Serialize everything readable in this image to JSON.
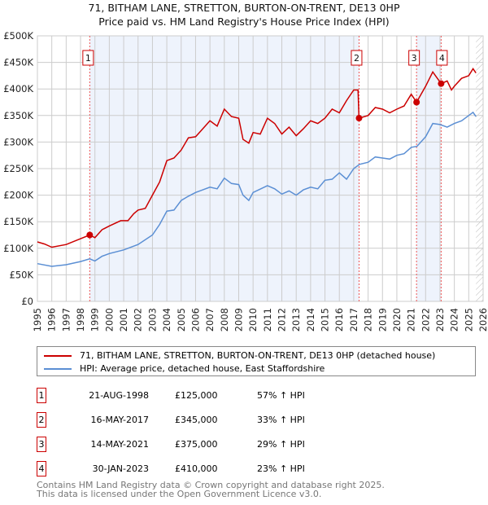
{
  "chart_data": {
    "type": "line",
    "title": "71, BITHAM LANE, STRETTON, BURTON-ON-TRENT, DE13 0HP",
    "subtitle": "Price paid vs. HM Land Registry's House Price Index (HPI)",
    "xlim": [
      1995,
      2026
    ],
    "ylim": [
      0,
      500000
    ],
    "x_ticks": [
      "1995",
      "1996",
      "1997",
      "1998",
      "1999",
      "2000",
      "2001",
      "2002",
      "2003",
      "2004",
      "2005",
      "2006",
      "2007",
      "2008",
      "2009",
      "2010",
      "2011",
      "2012",
      "2013",
      "2014",
      "2015",
      "2016",
      "2017",
      "2018",
      "2019",
      "2020",
      "2021",
      "2022",
      "2023",
      "2024",
      "2025",
      "2026"
    ],
    "y_ticks": [
      {
        "v": 0,
        "label": "£0"
      },
      {
        "v": 50000,
        "label": "£50K"
      },
      {
        "v": 100000,
        "label": "£100K"
      },
      {
        "v": 150000,
        "label": "£150K"
      },
      {
        "v": 200000,
        "label": "£200K"
      },
      {
        "v": 250000,
        "label": "£250K"
      },
      {
        "v": 300000,
        "label": "£300K"
      },
      {
        "v": 350000,
        "label": "£350K"
      },
      {
        "v": 400000,
        "label": "£400K"
      },
      {
        "v": 450000,
        "label": "£450K"
      },
      {
        "v": 500000,
        "label": "£500K"
      }
    ],
    "grid": true,
    "shaded_ranges": [
      [
        1998.64,
        2017.37
      ],
      [
        2021.37,
        2023.08
      ]
    ],
    "hatched_from": 2025.5,
    "series": [
      {
        "name": "71, BITHAM LANE, STRETTON, BURTON-ON-TRENT, DE13 0HP (detached house)",
        "color": "#cc0000",
        "x": [
          1995,
          1995.5,
          1996,
          1997,
          1998,
          1998.64,
          1999,
          1999.5,
          2000,
          2000.8,
          2001.3,
          2001.7,
          2002,
          2002.5,
          2003,
          2003.5,
          2004,
          2004.5,
          2005,
          2005.5,
          2006,
          2006.5,
          2007,
          2007.5,
          2008,
          2008.5,
          2009,
          2009.3,
          2009.7,
          2010,
          2010.5,
          2011,
          2011.5,
          2012,
          2012.5,
          2013,
          2013.5,
          2014,
          2014.5,
          2015,
          2015.5,
          2016,
          2016.5,
          2017,
          2017.3,
          2017.37,
          2018,
          2018.5,
          2019,
          2019.5,
          2020,
          2020.5,
          2021,
          2021.37,
          2022,
          2022.5,
          2023.08,
          2023.5,
          2023.8,
          2024,
          2024.5,
          2025,
          2025.3,
          2025.5
        ],
        "y": [
          112000,
          108000,
          102000,
          107000,
          118000,
          125000,
          120000,
          135000,
          142000,
          152000,
          152000,
          165000,
          172000,
          175000,
          200000,
          225000,
          265000,
          270000,
          285000,
          308000,
          310000,
          325000,
          340000,
          330000,
          362000,
          348000,
          345000,
          305000,
          298000,
          318000,
          315000,
          345000,
          335000,
          315000,
          328000,
          312000,
          325000,
          340000,
          335000,
          345000,
          362000,
          355000,
          378000,
          398000,
          398000,
          345000,
          350000,
          365000,
          362000,
          355000,
          362000,
          368000,
          390000,
          375000,
          405000,
          432000,
          410000,
          415000,
          398000,
          405000,
          420000,
          425000,
          438000,
          430000
        ]
      },
      {
        "name": "HPI: Average price, detached house, East Staffordshire",
        "color": "#5b8fd4",
        "x": [
          1995,
          1996,
          1997,
          1998,
          1998.64,
          1999,
          1999.5,
          2000,
          2001,
          2002,
          2003,
          2003.5,
          2004,
          2004.5,
          2005,
          2005.5,
          2006,
          2006.5,
          2007,
          2007.5,
          2008,
          2008.5,
          2009,
          2009.3,
          2009.7,
          2010,
          2011,
          2011.5,
          2012,
          2012.5,
          2013,
          2013.5,
          2014,
          2014.5,
          2015,
          2015.5,
          2016,
          2016.5,
          2017,
          2017.4,
          2018,
          2018.5,
          2019,
          2019.5,
          2020,
          2020.5,
          2021,
          2021.4,
          2022,
          2022.5,
          2023,
          2023.5,
          2024,
          2024.5,
          2025,
          2025.3,
          2025.5
        ],
        "y": [
          71000,
          66000,
          69000,
          75000,
          80000,
          76000,
          85000,
          90000,
          97000,
          107000,
          125000,
          145000,
          170000,
          172000,
          190000,
          198000,
          205000,
          210000,
          215000,
          212000,
          232000,
          222000,
          220000,
          200000,
          190000,
          205000,
          218000,
          212000,
          202000,
          208000,
          200000,
          210000,
          215000,
          212000,
          228000,
          230000,
          242000,
          230000,
          250000,
          258000,
          262000,
          272000,
          270000,
          268000,
          275000,
          278000,
          290000,
          292000,
          310000,
          335000,
          333000,
          328000,
          335000,
          340000,
          350000,
          356000,
          348000
        ]
      }
    ],
    "sales": [
      {
        "num": "1",
        "x": 1998.64,
        "price": 125000,
        "date": "21-AUG-1998",
        "price_label": "£125,000",
        "hpi": "57% ↑ HPI"
      },
      {
        "num": "2",
        "x": 2017.37,
        "price": 345000,
        "date": "16-MAY-2017",
        "price_label": "£345,000",
        "hpi": "33% ↑ HPI"
      },
      {
        "num": "3",
        "x": 2021.37,
        "price": 375000,
        "date": "14-MAY-2021",
        "price_label": "£375,000",
        "hpi": "29% ↑ HPI"
      },
      {
        "num": "4",
        "x": 2023.08,
        "price": 410000,
        "date": "30-JAN-2023",
        "price_label": "£410,000",
        "hpi": "23% ↑ HPI"
      }
    ]
  },
  "footer": {
    "line1": "Contains HM Land Registry data © Crown copyright and database right 2025.",
    "line2": "This data is licensed under the Open Government Licence v3.0."
  }
}
